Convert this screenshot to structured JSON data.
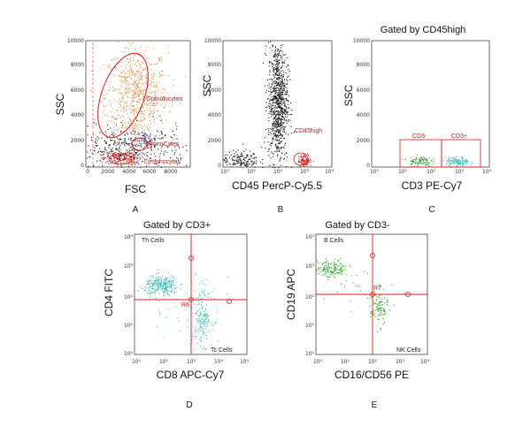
{
  "chart_data": [
    {
      "id": "A",
      "type": "scatter",
      "panel_label": "A",
      "xlabel": "FSC",
      "ylabel": "SSC",
      "xticks": [
        "0",
        "2000",
        "4000",
        "6000",
        "8000"
      ],
      "yticks": [
        "0",
        "2000",
        "4000",
        "6000",
        "8000",
        "10000"
      ],
      "xlim": [
        0,
        10000
      ],
      "ylim": [
        0,
        10000
      ],
      "populations": [
        {
          "name": "Granulocytes",
          "color": "#e08c3c",
          "center": [
            4800,
            5600
          ],
          "spread": [
            1500,
            2000
          ],
          "count": 700
        },
        {
          "name": "MonoCytes",
          "color": "#3a5fd0",
          "center": [
            5600,
            2300
          ],
          "spread": [
            500,
            320
          ],
          "count": 60
        },
        {
          "name": "Lymphocytes",
          "color": "#e01818",
          "center": [
            3400,
            700
          ],
          "spread": [
            850,
            260
          ],
          "count": 160
        },
        {
          "name": "",
          "color": "#111111",
          "center": [
            4000,
            1400
          ],
          "spread": [
            2800,
            900
          ],
          "count": 420
        }
      ],
      "gates": [
        {
          "name": "Granulocytes",
          "color": "#e01818"
        },
        {
          "name": "MonoCytes",
          "color": "#e01818"
        },
        {
          "name": "Lymphocytes",
          "color": "#e01818"
        }
      ]
    },
    {
      "id": "B",
      "type": "scatter",
      "panel_label": "B",
      "xlabel": "CD45 PercP-Cy5.5",
      "ylabel": "SSC",
      "xscale": "log",
      "xticks": [
        "10⁰",
        "10¹",
        "10²",
        "10³",
        "10⁴"
      ],
      "yticks": [
        "0",
        "2000",
        "4000",
        "6000",
        "8000",
        "10000"
      ],
      "ylim": [
        0,
        10000
      ],
      "populations": [
        {
          "name": "",
          "color": "#111111",
          "center": [
            2.0,
            5200
          ],
          "spread": [
            0.18,
            2400
          ],
          "count": 900
        },
        {
          "name": "",
          "color": "#111111",
          "center": [
            0.6,
            600
          ],
          "spread": [
            0.35,
            350
          ],
          "count": 160
        },
        {
          "name": "CD45high",
          "color": "#e01818",
          "center": [
            3.0,
            550
          ],
          "spread": [
            0.12,
            230
          ],
          "count": 110
        }
      ],
      "gates": [
        {
          "name": "CD45high",
          "color": "#e01818"
        }
      ]
    },
    {
      "id": "C",
      "type": "scatter",
      "panel_label": "C",
      "title": "Gated by CD45high",
      "xlabel": "CD3 PE-Cy7",
      "ylabel": "SSC",
      "xscale": "log",
      "xticks": [
        "10⁰",
        "10¹",
        "10²",
        "10³",
        "10⁴"
      ],
      "yticks": [
        "0",
        "2000",
        "4000",
        "6000",
        "8000",
        "10000"
      ],
      "ylim": [
        0,
        10000
      ],
      "populations": [
        {
          "name": "CD3-",
          "color": "#2a9a2a",
          "center": [
            1.6,
            500
          ],
          "spread": [
            0.2,
            200
          ],
          "count": 90
        },
        {
          "name": "CD3+",
          "color": "#3cc0b8",
          "center": [
            2.9,
            450
          ],
          "spread": [
            0.2,
            190
          ],
          "count": 130
        }
      ],
      "gates": [
        {
          "name": "CD3-",
          "color": "#e01818"
        },
        {
          "name": "CD3+",
          "color": "#e01818"
        }
      ]
    },
    {
      "id": "D",
      "type": "scatter",
      "panel_label": "D",
      "title": "Gated by CD3+",
      "xlabel": "CD8 APC-Cy7",
      "ylabel": "CD4 FITC",
      "xscale": "log",
      "yscale": "log",
      "xticks": [
        "10⁰",
        "10¹",
        "10²",
        "10³",
        "10⁴"
      ],
      "yticks": [
        "10⁰",
        "10¹",
        "10²",
        "10³",
        "10⁴"
      ],
      "quadrant_labels": [
        "Th Cells",
        "Tc Cells"
      ],
      "gate_label": "R6",
      "populations": [
        {
          "name": "Th Cells",
          "color": "#3cb8b0",
          "center": [
            0.95,
            2.3
          ],
          "spread": [
            0.3,
            0.16
          ],
          "count": 260
        },
        {
          "name": "Tc Cells",
          "color": "#3cb8b0",
          "center": [
            2.4,
            1.25
          ],
          "spread": [
            0.18,
            0.45
          ],
          "count": 170
        },
        {
          "name": "",
          "color": "#3cb8b0",
          "center": [
            1.7,
            1.6
          ],
          "spread": [
            0.9,
            0.7
          ],
          "count": 45
        }
      ]
    },
    {
      "id": "E",
      "type": "scatter",
      "panel_label": "E",
      "title": "Gated by CD3-",
      "xlabel": "CD16/CD56 PE",
      "ylabel": "CD19 APC",
      "xscale": "log",
      "yscale": "log",
      "xticks": [
        "10⁰",
        "10¹",
        "10²",
        "10³",
        "10⁴"
      ],
      "yticks": [
        "10⁰",
        "10¹",
        "10²",
        "10³",
        "10⁴"
      ],
      "quadrant_labels": [
        "B Cells",
        "NK Cells"
      ],
      "gate_label": "R7",
      "populations": [
        {
          "name": "B Cells",
          "color": "#2aa82a",
          "center": [
            0.55,
            2.85
          ],
          "spread": [
            0.3,
            0.15
          ],
          "count": 150
        },
        {
          "name": "NK Cells",
          "color": "#2aa82a",
          "center": [
            2.25,
            1.55
          ],
          "spread": [
            0.15,
            0.28
          ],
          "count": 95
        },
        {
          "name": "",
          "color": "#2aa82a",
          "center": [
            1.4,
            2.0
          ],
          "spread": [
            0.8,
            0.6
          ],
          "count": 25
        }
      ]
    }
  ]
}
